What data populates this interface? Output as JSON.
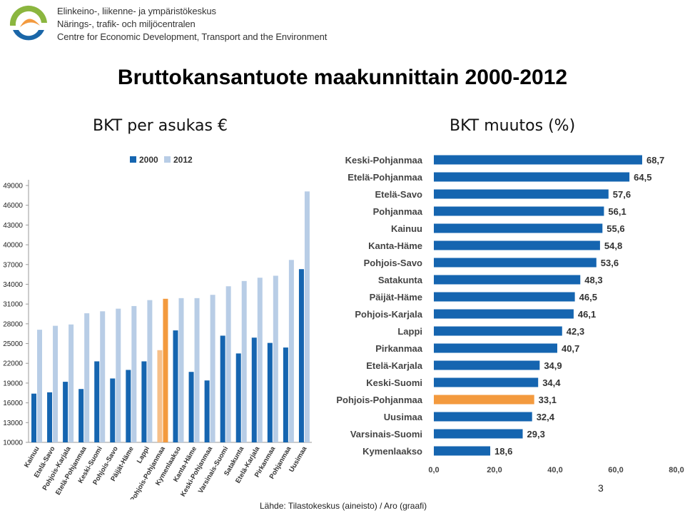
{
  "header": {
    "org_lines": [
      "Elinkeino-, liikenne- ja ympäristökeskus",
      "Närings-, trafik- och miljöcentralen",
      "Centre for Economic Development, Transport and the Environment"
    ]
  },
  "title": "Bruttokansantuote maakunnittain 2000-2012",
  "footer": {
    "source": "Lähde: Tilastokeskus (aineisto) / Aro (graafi)",
    "page_number": "3"
  },
  "colors": {
    "series_2000": "#1565b0",
    "series_2012": "#b8cde6",
    "highlight_2000": "#f7c08a",
    "highlight_2012": "#f39a3e",
    "bar_right": "#1565b0",
    "highlight_right": "#f39a3e"
  },
  "chart_data": [
    {
      "type": "bar",
      "title": "BKT per asukas €",
      "legend": [
        "2000",
        "2012"
      ],
      "legend_position": "top",
      "ylim": [
        10000,
        49000
      ],
      "yticks": [
        10000,
        13000,
        16000,
        19000,
        22000,
        25000,
        28000,
        31000,
        34000,
        37000,
        40000,
        43000,
        46000,
        49000
      ],
      "yticklabels": [
        "10000",
        "13000",
        "16000",
        "19000",
        "22000",
        "25000",
        "28000",
        "31000",
        "34000",
        "37000",
        "40000",
        "43000",
        "46000",
        "49000"
      ],
      "categories": [
        "Kainuu",
        "Etelä-Savo",
        "Pohjois-Karjala",
        "Etelä-Pohjanmaa",
        "Keski-Suomi",
        "Pohjois-Savo",
        "Päijät-Häme",
        "Lappi",
        "Pohjois-Pohjanmaa",
        "Kymenlaakso",
        "Kanta-Häme",
        "Keski-Pohjanmaa",
        "Varsinais-Suomi",
        "Satakunta",
        "Etelä-Karjala",
        "Pirkanmaa",
        "Pohjanmaa",
        "Uusimaa"
      ],
      "highlight": "Pohjois-Pohjanmaa",
      "series": [
        {
          "name": "2000",
          "values": [
            17400,
            17600,
            19200,
            18100,
            22300,
            19700,
            21000,
            22300,
            24000,
            27000,
            20700,
            19400,
            26200,
            23500,
            25900,
            25100,
            24400,
            36300
          ]
        },
        {
          "name": "2012",
          "values": [
            27100,
            27700,
            27900,
            29600,
            29900,
            30300,
            30700,
            31600,
            31800,
            31900,
            31900,
            32400,
            33700,
            34500,
            35000,
            35300,
            37700,
            48100
          ]
        }
      ]
    },
    {
      "type": "bar",
      "orientation": "horizontal",
      "title": "BKT muutos (%)",
      "xlim": [
        0,
        80
      ],
      "xticks": [
        0,
        20,
        40,
        60,
        80
      ],
      "xticklabels": [
        "0,0",
        "20,0",
        "40,0",
        "60,0",
        "80,0"
      ],
      "categories": [
        "Keski-Pohjanmaa",
        "Etelä-Pohjanmaa",
        "Etelä-Savo",
        "Pohjanmaa",
        "Kainuu",
        "Kanta-Häme",
        "Pohjois-Savo",
        "Satakunta",
        "Päijät-Häme",
        "Pohjois-Karjala",
        "Lappi",
        "Pirkanmaa",
        "Etelä-Karjala",
        "Keski-Suomi",
        "Pohjois-Pohjanmaa",
        "Uusimaa",
        "Varsinais-Suomi",
        "Kymenlaakso"
      ],
      "values": [
        68.7,
        64.5,
        57.6,
        56.1,
        55.6,
        54.8,
        53.6,
        48.3,
        46.5,
        46.1,
        42.3,
        40.7,
        34.9,
        34.4,
        33.1,
        32.4,
        29.3,
        18.6
      ],
      "value_labels": [
        "68,7",
        "64,5",
        "57,6",
        "56,1",
        "55,6",
        "54,8",
        "53,6",
        "48,3",
        "46,5",
        "46,1",
        "42,3",
        "40,7",
        "34,9",
        "34,4",
        "33,1",
        "32,4",
        "29,3",
        "18,6"
      ],
      "highlight": "Pohjois-Pohjanmaa"
    }
  ]
}
